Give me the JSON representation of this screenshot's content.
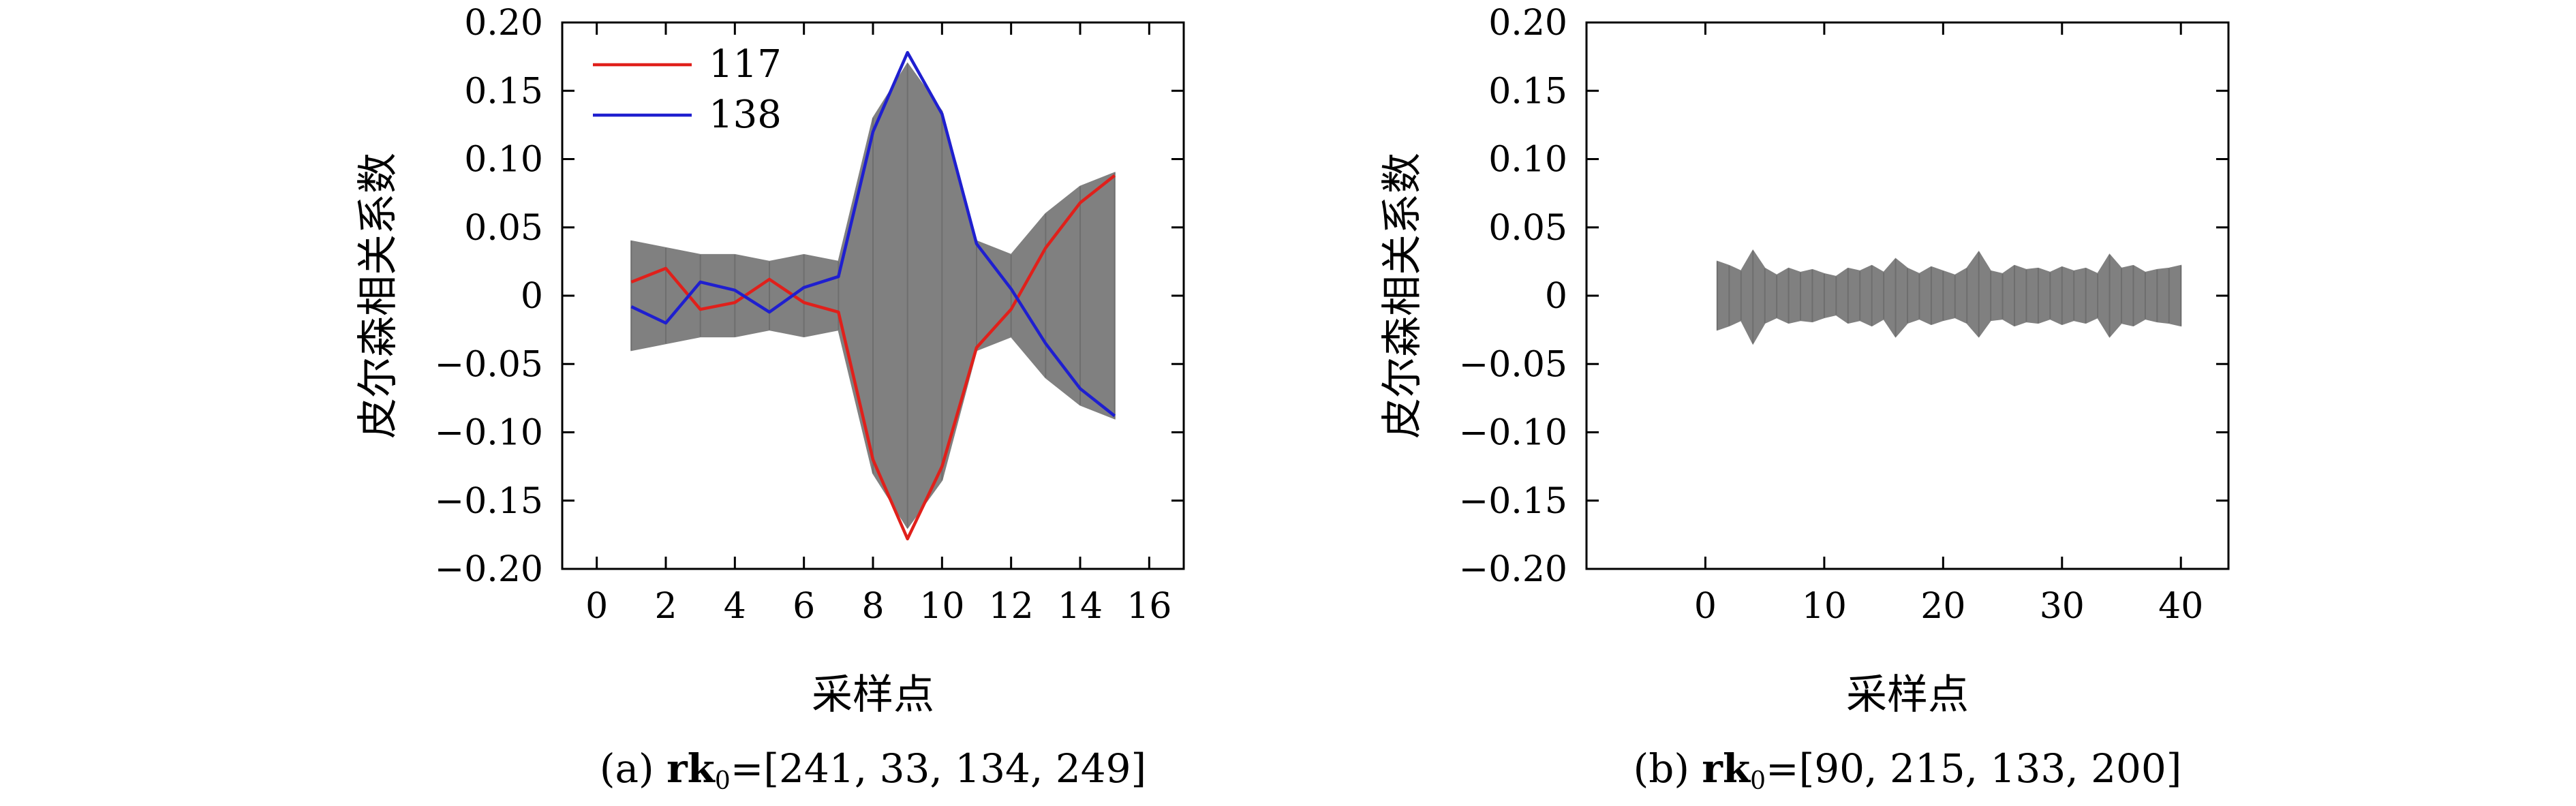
{
  "chart_data": [
    {
      "type": "line",
      "subplot": "a",
      "caption": {
        "prefix": "(a) ",
        "bold": "rk",
        "sub": "0",
        "suffix": "=[241, 33, 134, 249]"
      },
      "xlabel": "采样点",
      "ylabel": "皮尔森相关系数",
      "xlim": [
        -1,
        17
      ],
      "ylim": [
        -0.2,
        0.2
      ],
      "xticks": [
        0,
        2,
        4,
        6,
        8,
        10,
        12,
        14,
        16
      ],
      "yticks": [
        -0.2,
        -0.15,
        -0.1,
        -0.05,
        0,
        0.05,
        0.1,
        0.15,
        0.2
      ],
      "ytick_labels": [
        "−0.20",
        "−0.15",
        "−0.10",
        "−0.05",
        "0",
        "0.05",
        "0.10",
        "0.15",
        "0.20"
      ],
      "grid": false,
      "legend_position": "top-left",
      "background_band": {
        "color": "#808080",
        "x": [
          1,
          2,
          3,
          4,
          5,
          6,
          7,
          8,
          9,
          10,
          11,
          12,
          13,
          14,
          15
        ],
        "upper": [
          0.04,
          0.035,
          0.03,
          0.03,
          0.025,
          0.03,
          0.025,
          0.13,
          0.17,
          0.135,
          0.04,
          0.03,
          0.06,
          0.08,
          0.09
        ],
        "lower": [
          -0.04,
          -0.035,
          -0.03,
          -0.03,
          -0.025,
          -0.03,
          -0.025,
          -0.13,
          -0.17,
          -0.135,
          -0.04,
          -0.03,
          -0.06,
          -0.08,
          -0.09
        ]
      },
      "series": [
        {
          "name": "117",
          "color": "#e0201b",
          "x": [
            1,
            2,
            3,
            4,
            5,
            6,
            7,
            8,
            9,
            10,
            11,
            12,
            13,
            14,
            15
          ],
          "values": [
            0.01,
            0.02,
            -0.01,
            -0.005,
            0.012,
            -0.005,
            -0.012,
            -0.12,
            -0.178,
            -0.125,
            -0.038,
            -0.01,
            0.035,
            0.068,
            0.088
          ]
        },
        {
          "name": "138",
          "color": "#1f1fcf",
          "x": [
            1,
            2,
            3,
            4,
            5,
            6,
            7,
            8,
            9,
            10,
            11,
            12,
            13,
            14,
            15
          ],
          "values": [
            -0.008,
            -0.02,
            0.01,
            0.004,
            -0.012,
            0.006,
            0.014,
            0.12,
            0.178,
            0.133,
            0.038,
            0.005,
            -0.035,
            -0.068,
            -0.088
          ]
        }
      ]
    },
    {
      "type": "line",
      "subplot": "b",
      "caption": {
        "prefix": "(b) ",
        "bold": "rk",
        "sub": "0",
        "suffix": "=[90, 215, 133, 200]"
      },
      "xlabel": "采样点",
      "ylabel": "皮尔森相关系数",
      "xlim": [
        -10,
        44
      ],
      "ylim": [
        -0.2,
        0.2
      ],
      "xticks": [
        0,
        10,
        20,
        30,
        40
      ],
      "yticks": [
        -0.2,
        -0.15,
        -0.1,
        -0.05,
        0,
        0.05,
        0.1,
        0.15,
        0.2
      ],
      "ytick_labels": [
        "−0.20",
        "−0.15",
        "−0.10",
        "−0.05",
        "0",
        "0.05",
        "0.10",
        "0.15",
        "0.20"
      ],
      "grid": false,
      "background_band": {
        "color": "#808080",
        "x": [
          1,
          2,
          3,
          4,
          5,
          6,
          7,
          8,
          9,
          10,
          11,
          12,
          13,
          14,
          15,
          16,
          17,
          18,
          19,
          20,
          21,
          22,
          23,
          24,
          25,
          26,
          27,
          28,
          29,
          30,
          31,
          32,
          33,
          34,
          35,
          36,
          37,
          38,
          39,
          40
        ],
        "upper": [
          0.025,
          0.022,
          0.018,
          0.033,
          0.02,
          0.015,
          0.02,
          0.017,
          0.019,
          0.016,
          0.014,
          0.02,
          0.018,
          0.022,
          0.017,
          0.027,
          0.02,
          0.016,
          0.021,
          0.018,
          0.015,
          0.02,
          0.032,
          0.018,
          0.016,
          0.022,
          0.019,
          0.02,
          0.017,
          0.021,
          0.018,
          0.02,
          0.016,
          0.03,
          0.02,
          0.022,
          0.017,
          0.019,
          0.02,
          0.022
        ],
        "lower": [
          -0.025,
          -0.022,
          -0.018,
          -0.035,
          -0.02,
          -0.016,
          -0.02,
          -0.018,
          -0.019,
          -0.016,
          -0.014,
          -0.02,
          -0.018,
          -0.022,
          -0.017,
          -0.03,
          -0.02,
          -0.017,
          -0.021,
          -0.018,
          -0.016,
          -0.02,
          -0.03,
          -0.018,
          -0.017,
          -0.022,
          -0.019,
          -0.02,
          -0.017,
          -0.021,
          -0.018,
          -0.02,
          -0.016,
          -0.03,
          -0.02,
          -0.022,
          -0.017,
          -0.019,
          -0.02,
          -0.022
        ]
      },
      "series": []
    }
  ]
}
